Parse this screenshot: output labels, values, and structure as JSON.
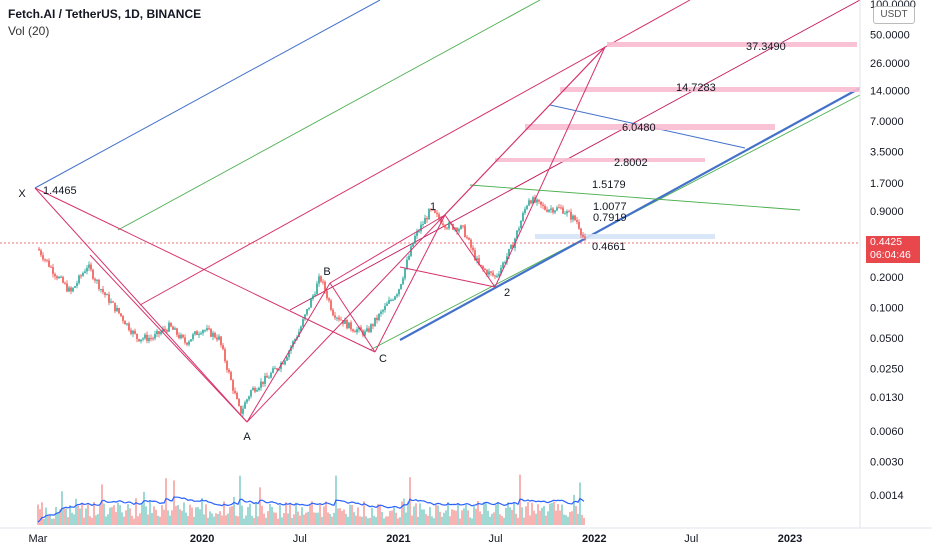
{
  "header": {
    "title": "Fetch.AI / TetherUS, 1D, BINANCE",
    "volume_label": "Vol (20)"
  },
  "price_axis": {
    "currency_button": "USDT",
    "current_price": "0.4425",
    "countdown": "06:04:46"
  },
  "colors": {
    "up": "#26a69a",
    "down": "#ef5350",
    "current_price": "#e8474c",
    "wave_lines": "#d6336c",
    "fan_blue": "#4472ca",
    "fan_green": "#4caf50",
    "fan_red": "#c2185b",
    "volume_ma": "#2962ff"
  },
  "chart_data": {
    "type": "line",
    "scale": "log",
    "title": "Fetch.AI / TetherUS, 1D, BINANCE",
    "xlabel": "",
    "ylabel": "",
    "ylim": [
      0.0009,
      100
    ],
    "x_ticks": [
      "Mar",
      "2020",
      "Jul",
      "2021",
      "Jul",
      "2022",
      "Jul",
      "2023"
    ],
    "y_ticks": [
      "100.0000",
      "50.0000",
      "26.0000",
      "14.0000",
      "7.0000",
      "3.5000",
      "1.7000",
      "0.9000",
      "0.4000",
      "0.2000",
      "0.1000",
      "0.0500",
      "0.0250",
      "0.0130",
      "0.0060",
      "0.0030",
      "0.0014"
    ],
    "grid": false,
    "series": [
      {
        "name": "",
        "approx_path": [
          [
            "2019-03-01",
            0.38
          ],
          [
            "2019-04-01",
            0.22
          ],
          [
            "2019-05-01",
            0.14
          ],
          [
            "2019-06-01",
            0.26
          ],
          [
            "2019-07-01",
            0.14
          ],
          [
            "2019-08-01",
            0.085
          ],
          [
            "2019-09-01",
            0.05
          ],
          [
            "2019-10-01",
            0.05
          ],
          [
            "2019-11-01",
            0.065
          ],
          [
            "2019-12-01",
            0.045
          ],
          [
            "2020-01-01",
            0.062
          ],
          [
            "2020-02-01",
            0.05
          ],
          [
            "2020-03-12",
            0.009
          ],
          [
            "2020-04-01",
            0.015
          ],
          [
            "2020-05-01",
            0.02
          ],
          [
            "2020-06-01",
            0.03
          ],
          [
            "2020-07-01",
            0.06
          ],
          [
            "2020-08-08",
            0.2
          ],
          [
            "2020-09-01",
            0.09
          ],
          [
            "2020-10-01",
            0.065
          ],
          [
            "2020-11-01",
            0.055
          ],
          [
            "2020-12-01",
            0.09
          ],
          [
            "2021-01-01",
            0.15
          ],
          [
            "2021-02-01",
            0.5
          ],
          [
            "2021-03-01",
            0.9
          ],
          [
            "2021-04-01",
            0.65
          ],
          [
            "2021-05-01",
            0.6
          ],
          [
            "2021-06-01",
            0.25
          ],
          [
            "2021-07-01",
            0.2
          ],
          [
            "2021-08-01",
            0.4
          ],
          [
            "2021-09-01",
            1.2
          ],
          [
            "2021-10-01",
            0.95
          ],
          [
            "2021-11-01",
            0.95
          ],
          [
            "2021-12-01",
            0.7
          ],
          [
            "2021-12-15",
            0.4425
          ]
        ]
      }
    ],
    "wave_labels": [
      {
        "text": "X",
        "date": "2019-03-01",
        "price": 1.4465
      },
      {
        "text": "A",
        "date": "2020-03-12",
        "price": 0.0065
      },
      {
        "text": "B",
        "date": "2020-08-10",
        "price": 0.3
      },
      {
        "text": "C",
        "date": "2020-11-20",
        "price": 0.033
      },
      {
        "text": "1",
        "date": "2021-03-10",
        "price": 1.2
      },
      {
        "text": "2",
        "date": "2021-07-10",
        "price": 0.13
      }
    ],
    "level_labels": [
      "1.4465",
      "37.3490",
      "14.7283",
      "6.0480",
      "2.8002",
      "1.5179",
      "1.0077",
      "0.7919",
      "0.4661"
    ],
    "volume": {
      "name": "Vol (20)"
    }
  }
}
